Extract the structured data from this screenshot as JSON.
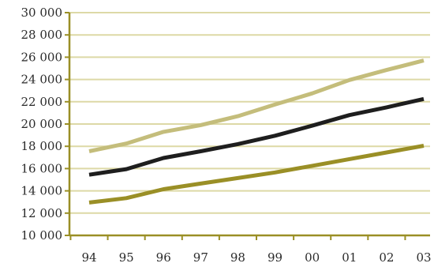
{
  "chart_data": {
    "type": "line",
    "title": "",
    "xlabel": "",
    "ylabel": "",
    "categories": [
      "94",
      "95",
      "96",
      "97",
      "98",
      "99",
      "00",
      "01",
      "02",
      "03"
    ],
    "ylim": [
      10000,
      30000
    ],
    "yticks": [
      10000,
      12000,
      14000,
      16000,
      18000,
      20000,
      22000,
      24000,
      26000,
      28000,
      30000
    ],
    "ytick_labels": [
      "10 000",
      "12 000",
      "14 000",
      "16 000",
      "18 000",
      "20 000",
      "22 000",
      "24 000",
      "26 000",
      "28 000",
      "30 000"
    ],
    "grid": true,
    "legend": "none",
    "series": [
      {
        "color": "#c4bd7b",
        "values": [
          17550,
          18250,
          19300,
          19900,
          20700,
          21750,
          22750,
          23950,
          24850,
          25700
        ]
      },
      {
        "color": "#1e1e1e",
        "values": [
          15450,
          15950,
          16950,
          17550,
          18200,
          18950,
          19850,
          20800,
          21500,
          22250
        ]
      },
      {
        "color": "#9a8f26",
        "values": [
          12950,
          13350,
          14150,
          14650,
          15150,
          15650,
          16250,
          16850,
          17450,
          18050
        ]
      }
    ],
    "colors": {
      "axis": "#9a8f26",
      "grid": "#ddd9a6",
      "text": "#2b2b2b"
    }
  }
}
